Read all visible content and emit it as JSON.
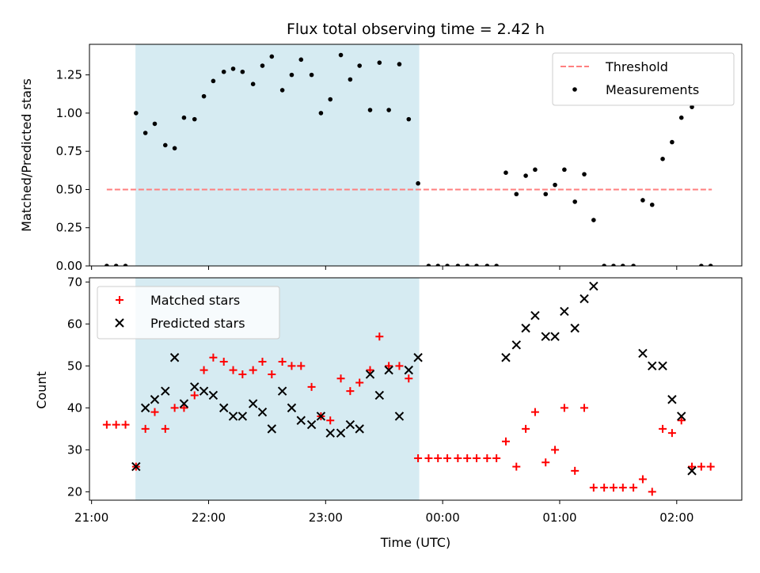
{
  "chart_data": {
    "title": "Flux total observing time = 2.42 h",
    "xlabel": "Time (UTC)",
    "x_tick_labels": [
      "21:00",
      "22:00",
      "23:00",
      "00:00",
      "01:00",
      "02:00"
    ],
    "x_tick_hours": [
      21,
      22,
      23,
      24,
      25,
      26
    ],
    "x_unit": "hours UTC (24 = 00:00 next day)",
    "xlim": [
      20.982,
      26.556
    ],
    "shaded_interval": {
      "start": 21.375,
      "end": 23.8,
      "color": "#add8e6"
    },
    "panels": [
      {
        "type": "scatter",
        "ylabel": "Matched/Predicted stars",
        "ylim": [
          0,
          1.45
        ],
        "y_tick_values": [
          0.0,
          0.25,
          0.5,
          0.75,
          1.0,
          1.25
        ],
        "y_tick_labels": [
          "0.00",
          "0.25",
          "0.50",
          "0.75",
          "1.00",
          "1.25"
        ],
        "legend_position": "upper right",
        "series": [
          {
            "name": "Threshold",
            "type": "line",
            "style": "dashed",
            "color": "#ff7f7f",
            "x": [
              21.13,
              26.3
            ],
            "y": [
              0.5,
              0.5
            ]
          },
          {
            "name": "Measurements",
            "type": "scatter",
            "marker": "dot",
            "color": "#000000",
            "points": [
              [
                21.13,
                0.0
              ],
              [
                21.21,
                0.0
              ],
              [
                21.29,
                0.0
              ],
              [
                21.38,
                1.0
              ],
              [
                21.46,
                0.87
              ],
              [
                21.54,
                0.93
              ],
              [
                21.63,
                0.79
              ],
              [
                21.71,
                0.77
              ],
              [
                21.79,
                0.97
              ],
              [
                21.88,
                0.96
              ],
              [
                21.96,
                1.11
              ],
              [
                22.04,
                1.21
              ],
              [
                22.13,
                1.27
              ],
              [
                22.21,
                1.29
              ],
              [
                22.29,
                1.27
              ],
              [
                22.38,
                1.19
              ],
              [
                22.46,
                1.31
              ],
              [
                22.54,
                1.37
              ],
              [
                22.63,
                1.15
              ],
              [
                22.71,
                1.25
              ],
              [
                22.79,
                1.35
              ],
              [
                22.88,
                1.25
              ],
              [
                22.96,
                1.0
              ],
              [
                23.04,
                1.09
              ],
              [
                23.13,
                1.38
              ],
              [
                23.21,
                1.22
              ],
              [
                23.29,
                1.31
              ],
              [
                23.38,
                1.02
              ],
              [
                23.46,
                1.33
              ],
              [
                23.54,
                1.02
              ],
              [
                23.63,
                1.32
              ],
              [
                23.71,
                0.96
              ],
              [
                23.79,
                0.54
              ],
              [
                23.88,
                0.0
              ],
              [
                23.96,
                0.0
              ],
              [
                24.04,
                0.0
              ],
              [
                24.13,
                0.0
              ],
              [
                24.21,
                0.0
              ],
              [
                24.29,
                0.0
              ],
              [
                24.38,
                0.0
              ],
              [
                24.46,
                0.0
              ],
              [
                24.54,
                0.61
              ],
              [
                24.63,
                0.47
              ],
              [
                24.71,
                0.59
              ],
              [
                24.79,
                0.63
              ],
              [
                24.88,
                0.47
              ],
              [
                24.96,
                0.53
              ],
              [
                25.04,
                0.63
              ],
              [
                25.13,
                0.42
              ],
              [
                25.21,
                0.6
              ],
              [
                25.29,
                0.3
              ],
              [
                25.38,
                0.0
              ],
              [
                25.46,
                0.0
              ],
              [
                25.54,
                0.0
              ],
              [
                25.63,
                0.0
              ],
              [
                25.71,
                0.43
              ],
              [
                25.79,
                0.4
              ],
              [
                25.88,
                0.7
              ],
              [
                25.96,
                0.81
              ],
              [
                26.04,
                0.97
              ],
              [
                26.13,
                1.04
              ],
              [
                26.21,
                0.0
              ],
              [
                26.29,
                0.0
              ]
            ]
          }
        ]
      },
      {
        "type": "scatter",
        "ylabel": "Count",
        "ylim": [
          18,
          71
        ],
        "y_tick_values": [
          20,
          30,
          40,
          50,
          60,
          70
        ],
        "y_tick_labels": [
          "20",
          "30",
          "40",
          "50",
          "60",
          "70"
        ],
        "legend_position": "upper left",
        "series": [
          {
            "name": "Matched stars",
            "type": "scatter",
            "marker": "plus",
            "color": "#ff0000",
            "points": [
              [
                21.13,
                36
              ],
              [
                21.21,
                36
              ],
              [
                21.29,
                36
              ],
              [
                21.38,
                26
              ],
              [
                21.46,
                35
              ],
              [
                21.54,
                39
              ],
              [
                21.63,
                35
              ],
              [
                21.71,
                40
              ],
              [
                21.79,
                40
              ],
              [
                21.88,
                43
              ],
              [
                21.96,
                49
              ],
              [
                22.04,
                52
              ],
              [
                22.13,
                51
              ],
              [
                22.21,
                49
              ],
              [
                22.29,
                48
              ],
              [
                22.38,
                49
              ],
              [
                22.46,
                51
              ],
              [
                22.54,
                48
              ],
              [
                22.63,
                51
              ],
              [
                22.71,
                50
              ],
              [
                22.79,
                50
              ],
              [
                22.88,
                45
              ],
              [
                22.96,
                38
              ],
              [
                23.04,
                37
              ],
              [
                23.13,
                47
              ],
              [
                23.21,
                44
              ],
              [
                23.29,
                46
              ],
              [
                23.38,
                49
              ],
              [
                23.46,
                57
              ],
              [
                23.54,
                50
              ],
              [
                23.63,
                50
              ],
              [
                23.71,
                47
              ],
              [
                23.79,
                28
              ],
              [
                23.88,
                28
              ],
              [
                23.96,
                28
              ],
              [
                24.04,
                28
              ],
              [
                24.13,
                28
              ],
              [
                24.21,
                28
              ],
              [
                24.29,
                28
              ],
              [
                24.38,
                28
              ],
              [
                24.46,
                28
              ],
              [
                24.54,
                32
              ],
              [
                24.63,
                26
              ],
              [
                24.71,
                35
              ],
              [
                24.79,
                39
              ],
              [
                24.88,
                27
              ],
              [
                24.96,
                30
              ],
              [
                25.04,
                40
              ],
              [
                25.13,
                25
              ],
              [
                25.21,
                40
              ],
              [
                25.29,
                21
              ],
              [
                25.38,
                21
              ],
              [
                25.46,
                21
              ],
              [
                25.54,
                21
              ],
              [
                25.63,
                21
              ],
              [
                25.71,
                23
              ],
              [
                25.79,
                20
              ],
              [
                25.88,
                35
              ],
              [
                25.96,
                34
              ],
              [
                26.04,
                37
              ],
              [
                26.13,
                26
              ],
              [
                26.21,
                26
              ],
              [
                26.29,
                26
              ]
            ]
          },
          {
            "name": "Predicted stars",
            "type": "scatter",
            "marker": "x",
            "color": "#000000",
            "points": [
              [
                21.38,
                26
              ],
              [
                21.46,
                40
              ],
              [
                21.54,
                42
              ],
              [
                21.63,
                44
              ],
              [
                21.71,
                52
              ],
              [
                21.79,
                41
              ],
              [
                21.88,
                45
              ],
              [
                21.96,
                44
              ],
              [
                22.04,
                43
              ],
              [
                22.13,
                40
              ],
              [
                22.21,
                38
              ],
              [
                22.29,
                38
              ],
              [
                22.38,
                41
              ],
              [
                22.46,
                39
              ],
              [
                22.54,
                35
              ],
              [
                22.63,
                44
              ],
              [
                22.71,
                40
              ],
              [
                22.79,
                37
              ],
              [
                22.88,
                36
              ],
              [
                22.96,
                38
              ],
              [
                23.04,
                34
              ],
              [
                23.13,
                34
              ],
              [
                23.21,
                36
              ],
              [
                23.29,
                35
              ],
              [
                23.38,
                48
              ],
              [
                23.46,
                43
              ],
              [
                23.54,
                49
              ],
              [
                23.63,
                38
              ],
              [
                23.71,
                49
              ],
              [
                23.79,
                52
              ],
              [
                24.54,
                52
              ],
              [
                24.63,
                55
              ],
              [
                24.71,
                59
              ],
              [
                24.79,
                62
              ],
              [
                24.88,
                57
              ],
              [
                24.96,
                57
              ],
              [
                25.04,
                63
              ],
              [
                25.13,
                59
              ],
              [
                25.21,
                66
              ],
              [
                25.29,
                69
              ],
              [
                25.71,
                53
              ],
              [
                25.79,
                50
              ],
              [
                25.88,
                50
              ],
              [
                25.96,
                42
              ],
              [
                26.04,
                38
              ],
              [
                26.13,
                25
              ]
            ]
          }
        ]
      }
    ]
  }
}
